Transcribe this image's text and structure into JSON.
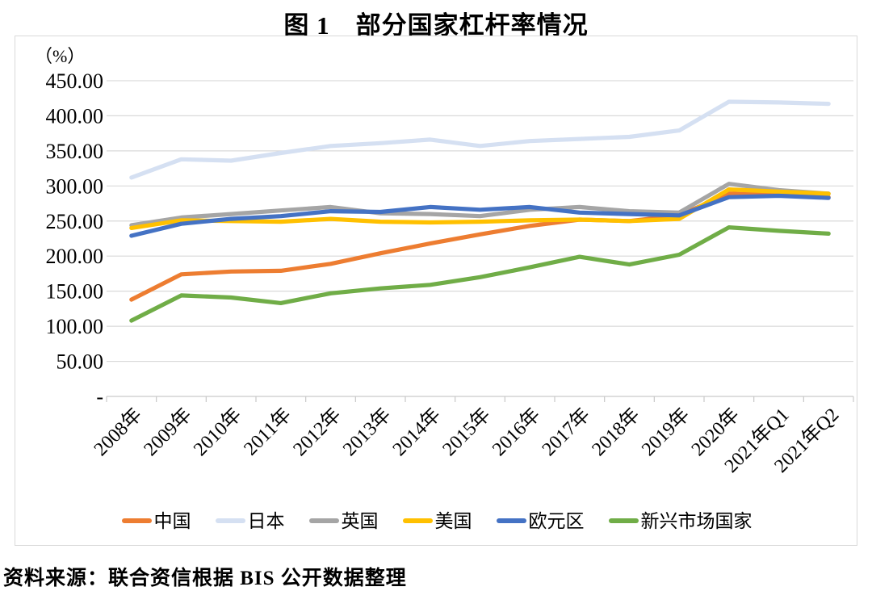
{
  "source": "资料来源：联合资信根据 BIS 公开数据整理",
  "chart_data": {
    "type": "line",
    "title": "图 1　部分国家杠杆率情况",
    "unit_label": "（%）",
    "grid": true,
    "legend_position": "bottom",
    "ylim": [
      0,
      450
    ],
    "ytick_values": [
      450,
      400,
      350,
      300,
      250,
      200,
      150,
      100,
      50,
      0
    ],
    "ytick_labels": [
      "450.00",
      "400.00",
      "350.00",
      "300.00",
      "250.00",
      "200.00",
      "150.00",
      "100.00",
      "50.00",
      "-"
    ],
    "categories": [
      "2008年",
      "2009年",
      "2010年",
      "2011年",
      "2012年",
      "2013年",
      "2014年",
      "2015年",
      "2016年",
      "2017年",
      "2018年",
      "2019年",
      "2020年",
      "2021年Q1",
      "2021年Q2"
    ],
    "series": [
      {
        "key": "china",
        "name": "中国",
        "color": "#ED7D31",
        "values": [
          138,
          174,
          178,
          179,
          189,
          204,
          218,
          231,
          243,
          252,
          250,
          258,
          289,
          287,
          284
        ]
      },
      {
        "key": "japan",
        "name": "日本",
        "color": "#D5E0F2",
        "values": [
          312,
          338,
          336,
          347,
          357,
          361,
          366,
          357,
          364,
          367,
          370,
          379,
          420,
          419,
          417
        ]
      },
      {
        "key": "uk",
        "name": "英国",
        "color": "#A5A5A5",
        "values": [
          244,
          255,
          260,
          265,
          270,
          261,
          260,
          257,
          266,
          270,
          264,
          262,
          303,
          294,
          289
        ]
      },
      {
        "key": "usa",
        "name": "美国",
        "color": "#FFC000",
        "values": [
          240,
          251,
          250,
          249,
          253,
          249,
          248,
          249,
          251,
          252,
          250,
          253,
          295,
          292,
          289
        ]
      },
      {
        "key": "eurozone",
        "name": "欧元区",
        "color": "#4472C4",
        "values": [
          229,
          246,
          253,
          257,
          264,
          263,
          270,
          266,
          270,
          262,
          260,
          258,
          284,
          286,
          283
        ]
      },
      {
        "key": "emerging-markets",
        "name": "新兴市场国家",
        "color": "#70AD47",
        "values": [
          108,
          144,
          141,
          133,
          147,
          154,
          159,
          170,
          184,
          199,
          188,
          202,
          241,
          236,
          232
        ]
      }
    ]
  }
}
